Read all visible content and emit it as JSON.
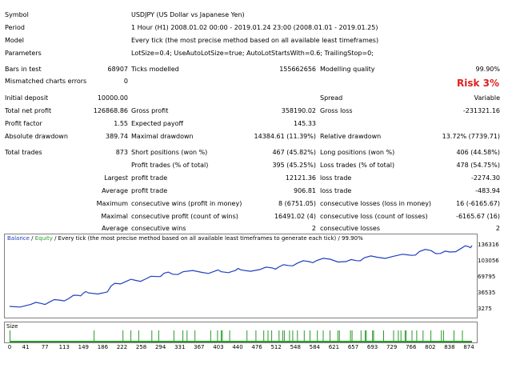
{
  "header": {
    "symbol_label": "Symbol",
    "symbol_value": "USDJPY (US Dollar vs Japanese Yen)",
    "period_label": "Period",
    "period_value": "1 Hour (H1) 2008.01.02 00:00 - 2019.01.24 23:00 (2008.01.01 - 2019.01.25)",
    "model_label": "Model",
    "model_value": "Every tick (the most precise method based on all available least timeframes)",
    "params_label": "Parameters",
    "params_value": "LotSize=0.4; UseAutoLotSize=true; AutoLotStartsWith=0.6; TrailingStop=0;"
  },
  "stats": {
    "bars_label": "Bars in test",
    "bars_value": "68907",
    "ticks_label": "Ticks modelled",
    "ticks_value": "155662656",
    "quality_label": "Modelling quality",
    "quality_value": "99.90%",
    "mismatch_label": "Mismatched charts errors",
    "mismatch_value": "0",
    "risk_text": "Risk 3%",
    "deposit_label": "Initial deposit",
    "deposit_value": "10000.00",
    "spread_label": "Spread",
    "spread_value": "Variable",
    "netprofit_label": "Total net profit",
    "netprofit_value": "126868.86",
    "grossprofit_label": "Gross profit",
    "grossprofit_value": "358190.02",
    "grossloss_label": "Gross loss",
    "grossloss_value": "-231321.16",
    "pf_label": "Profit factor",
    "pf_value": "1.55",
    "payoff_label": "Expected payoff",
    "payoff_value": "145.33",
    "absdd_label": "Absolute drawdown",
    "absdd_value": "389.74",
    "maxdd_label": "Maximal drawdown",
    "maxdd_value": "14384.61 (11.39%)",
    "reldd_label": "Relative drawdown",
    "reldd_value": "13.72% (7739.71)",
    "trades_label": "Total trades",
    "trades_value": "873",
    "short_label": "Short positions (won %)",
    "short_value": "467 (45.82%)",
    "long_label": "Long positions (won %)",
    "long_value": "406 (44.58%)",
    "pt_label": "Profit trades (% of total)",
    "pt_value": "395 (45.25%)",
    "lt_label": "Loss trades (% of total)",
    "lt_value": "478 (54.75%)",
    "largest_label": "Largest",
    "lp_label": "profit trade",
    "lp_value": "12121.36",
    "ll_label": "loss trade",
    "ll_value": "-2274.30",
    "average_label": "Average",
    "ap_label": "profit trade",
    "ap_value": "906.81",
    "al_label": "loss trade",
    "al_value": "-483.94",
    "maximum_label": "Maximum",
    "mcw_label": "consecutive wins (profit in money)",
    "mcw_value": "8 (6751.05)",
    "mcl_label": "consecutive losses (loss in money)",
    "mcl_value": "16 (-6165.67)",
    "maximal_label": "Maximal",
    "mcp_label": "consecutive profit (count of wins)",
    "mcp_value": "16491.02 (4)",
    "mclc_label": "consecutive loss (count of losses)",
    "mclc_value": "-6165.67 (16)",
    "average2_label": "Average",
    "acw_label": "consecutive wins",
    "acw_value": "2",
    "acl_label": "consecutive losses",
    "acl_value": "2"
  },
  "graph": {
    "legend_balance": "Balance",
    "legend_sep": " / ",
    "legend_equity": "Equity",
    "legend_rest": " / Every tick (the most precise method based on all available least timeframes to generate each tick) / 99.90%",
    "size_label": "Size",
    "balance_color": "#1f3fbf",
    "equity_color": "#2a9a2a"
  },
  "chart_data": {
    "type": "line",
    "series": [
      {
        "name": "Balance",
        "x": [
          0,
          40,
          60,
          75,
          95,
          113,
          130,
          140,
          150,
          186,
          200,
          222,
          240,
          258,
          280,
          294,
          310,
          330,
          367,
          390,
          403,
          430,
          440,
          476,
          500,
          512,
          530,
          548,
          570,
          584,
          610,
          640,
          660,
          675,
          700,
          730,
          765,
          780,
          802,
          820,
          838,
          860,
          874,
          880
        ],
        "y": [
          10000,
          14000,
          16000,
          18500,
          23000,
          26500,
          33000,
          37000,
          38000,
          40000,
          58000,
          62000,
          64000,
          66500,
          72000,
          79000,
          77000,
          82000,
          80500,
          83000,
          82000,
          85000,
          86000,
          86500,
          90000,
          91500,
          95000,
          100000,
          103000,
          105000,
          108000,
          103000,
          105000,
          111000,
          112000,
          114000,
          116000,
          124000,
          126000,
          120000,
          123000,
          131000,
          134000,
          136316
        ]
      }
    ],
    "y_ticks": [
      "136316",
      "103056",
      "69795",
      "36535",
      "3275"
    ],
    "ylim": [
      3275,
      136316
    ],
    "x_ticks": [
      "0",
      "41",
      "77",
      "113",
      "149",
      "186",
      "222",
      "258",
      "294",
      "331",
      "367",
      "403",
      "440",
      "476",
      "512",
      "548",
      "584",
      "621",
      "657",
      "693",
      "729",
      "766",
      "802",
      "838",
      "874"
    ],
    "xlim": [
      0,
      880
    ],
    "size_bars": [
      0,
      160,
      215,
      230,
      245,
      270,
      283,
      312,
      329,
      337,
      352,
      382,
      395,
      402,
      404,
      418,
      451,
      468,
      483,
      491,
      498,
      512,
      519,
      522,
      532,
      538,
      547,
      560,
      571,
      585,
      596,
      609,
      624,
      627,
      648,
      651,
      668,
      676,
      678,
      690,
      692,
      711,
      730,
      739,
      744,
      752,
      754,
      765,
      774,
      786,
      801,
      821,
      825,
      845,
      861
    ],
    "grid": false
  }
}
